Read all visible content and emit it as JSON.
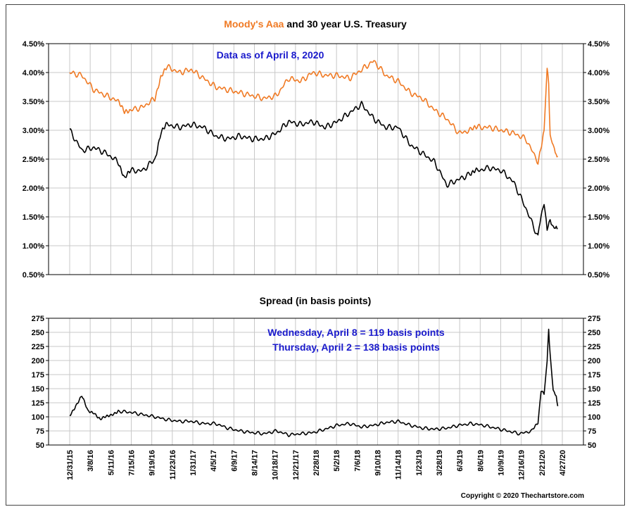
{
  "chart_data": [
    {
      "type": "line",
      "title_parts": [
        {
          "text": "Moody's Aaa",
          "color": "#f07a24"
        },
        {
          "text": " and 30 year U.S. Treasury",
          "color": "#000000"
        }
      ],
      "annotation": "Data as of April 8, 2020",
      "annotation_color": "#1a1acc",
      "ylim": [
        0.5,
        4.5
      ],
      "yticks": [
        "0.50%",
        "1.00%",
        "1.50%",
        "2.00%",
        "2.50%",
        "3.00%",
        "3.50%",
        "4.00%",
        "4.50%"
      ],
      "x_range": [
        0,
        1620
      ],
      "series": [
        {
          "name": "Moody's Aaa",
          "color": "#f07a24",
          "x": [
            0,
            40,
            80,
            120,
            160,
            180,
            200,
            240,
            280,
            300,
            320,
            360,
            400,
            440,
            480,
            520,
            560,
            600,
            640,
            680,
            720,
            760,
            800,
            840,
            880,
            920,
            960,
            1000,
            1040,
            1080,
            1120,
            1160,
            1200,
            1240,
            1280,
            1320,
            1340,
            1380,
            1420,
            1460,
            1500,
            1540,
            1560,
            1570,
            1575,
            1580,
            1590,
            1600,
            1605
          ],
          "y": [
            4.0,
            3.95,
            3.7,
            3.6,
            3.5,
            3.3,
            3.35,
            3.4,
            3.55,
            3.9,
            4.1,
            4.0,
            4.05,
            3.9,
            3.75,
            3.7,
            3.65,
            3.6,
            3.55,
            3.6,
            3.9,
            3.85,
            4.0,
            3.95,
            3.95,
            3.9,
            4.05,
            4.2,
            3.95,
            3.85,
            3.65,
            3.55,
            3.35,
            3.2,
            2.95,
            3.0,
            3.05,
            3.05,
            3.0,
            2.95,
            2.85,
            2.45,
            3.0,
            4.1,
            3.8,
            2.9,
            2.7,
            2.6,
            2.55
          ]
        },
        {
          "name": "30 year U.S. Treasury",
          "color": "#000000",
          "x": [
            0,
            40,
            80,
            120,
            160,
            180,
            200,
            240,
            280,
            300,
            320,
            360,
            400,
            440,
            480,
            520,
            560,
            600,
            640,
            680,
            720,
            760,
            800,
            840,
            880,
            920,
            960,
            1000,
            1040,
            1080,
            1120,
            1160,
            1200,
            1240,
            1280,
            1320,
            1340,
            1380,
            1420,
            1460,
            1500,
            1540,
            1550,
            1560,
            1570,
            1580,
            1590,
            1600,
            1605
          ],
          "y": [
            3.0,
            2.65,
            2.7,
            2.6,
            2.45,
            2.15,
            2.3,
            2.3,
            2.5,
            2.95,
            3.1,
            3.05,
            3.1,
            3.05,
            2.9,
            2.85,
            2.9,
            2.85,
            2.85,
            2.95,
            3.15,
            3.1,
            3.15,
            3.05,
            3.15,
            3.3,
            3.45,
            3.2,
            3.05,
            3.05,
            2.75,
            2.6,
            2.45,
            2.05,
            2.15,
            2.25,
            2.3,
            2.35,
            2.3,
            2.1,
            1.65,
            1.15,
            1.55,
            1.75,
            1.25,
            1.45,
            1.35,
            1.3,
            1.3
          ]
        }
      ]
    },
    {
      "type": "line",
      "title": "Spread (in basis points)",
      "annotations": [
        "Wednesday, April 8 = 119 basis points",
        "Thursday, April 2 = 138 basis points"
      ],
      "annotation_color": "#1a1acc",
      "ylim": [
        50,
        275
      ],
      "yticks": [
        "50",
        "75",
        "100",
        "125",
        "150",
        "175",
        "200",
        "225",
        "250",
        "275"
      ],
      "x_range": [
        0,
        1620
      ],
      "series": [
        {
          "name": "Spread",
          "color": "#000000",
          "x": [
            0,
            20,
            40,
            60,
            80,
            100,
            120,
            140,
            160,
            200,
            240,
            280,
            320,
            360,
            400,
            440,
            480,
            520,
            560,
            600,
            640,
            680,
            720,
            760,
            800,
            840,
            880,
            920,
            960,
            1000,
            1040,
            1080,
            1120,
            1160,
            1200,
            1240,
            1280,
            1320,
            1360,
            1400,
            1440,
            1480,
            1520,
            1540,
            1550,
            1560,
            1570,
            1575,
            1580,
            1590,
            1600,
            1605
          ],
          "y": [
            102,
            120,
            137,
            110,
            108,
            95,
            100,
            105,
            110,
            108,
            104,
            100,
            95,
            92,
            92,
            88,
            88,
            80,
            75,
            72,
            70,
            75,
            68,
            70,
            72,
            78,
            85,
            88,
            82,
            85,
            90,
            92,
            85,
            80,
            78,
            80,
            85,
            88,
            85,
            80,
            75,
            70,
            75,
            90,
            145,
            140,
            200,
            255,
            210,
            145,
            138,
            119
          ]
        }
      ]
    }
  ],
  "x_dates": [
    "12/31/15",
    "3/8/16",
    "5/11/16",
    "7/15/16",
    "9/19/16",
    "11/23/16",
    "1/31/17",
    "4/5/17",
    "6/9/17",
    "8/14/17",
    "10/18/17",
    "12/21/17",
    "2/28/18",
    "5/2/18",
    "7/6/18",
    "9/10/18",
    "11/14/18",
    "1/23/19",
    "3/28/19",
    "6/3/19",
    "8/6/19",
    "10/9/19",
    "12/16/19",
    "2/21/20",
    "4/27/20"
  ],
  "copyright": "Copyright © 2020 Thechartstore.com"
}
